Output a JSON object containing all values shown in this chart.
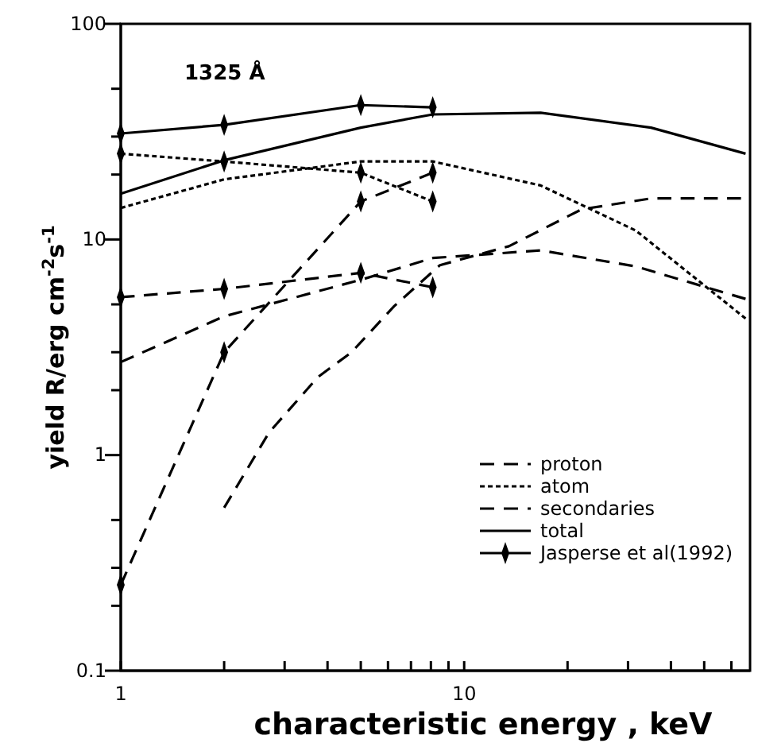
{
  "chart_data": {
    "type": "line",
    "xlabel": "characteristic energy , keV",
    "ylabel": "yield  R/erg cm$^{-2}$s$^{-1}$",
    "annotations": [
      "1325 Å"
    ],
    "log": "xy",
    "grid": false,
    "legend": "right",
    "xlim": [
      1,
      68
    ],
    "ylim": [
      0.1,
      100
    ],
    "xticks": [
      1,
      {
        "value": 2,
        "label": null
      },
      {
        "value": 3,
        "label": null
      },
      {
        "value": 4,
        "label": null
      },
      {
        "value": 5,
        "label": null
      },
      {
        "value": 6,
        "label": null
      },
      {
        "value": 7,
        "label": null
      },
      {
        "value": 8,
        "label": null
      },
      {
        "value": 9,
        "label": null
      },
      10,
      {
        "value": 20,
        "label": null
      },
      {
        "value": 30,
        "label": null
      },
      {
        "value": 40,
        "label": null
      },
      {
        "value": 50,
        "label": null
      },
      {
        "value": 60,
        "label": null
      }
    ],
    "yticks": [
      0.1,
      {
        "value": 0.2,
        "label": null
      },
      {
        "value": 0.3,
        "label": null
      },
      {
        "value": 0.5,
        "label": null
      },
      1,
      {
        "value": 2,
        "label": null
      },
      {
        "value": 3,
        "label": null
      },
      {
        "value": 5,
        "label": null
      },
      10,
      {
        "value": 20,
        "label": null
      },
      {
        "value": 30,
        "label": null
      },
      {
        "value": 50,
        "label": null
      },
      100
    ],
    "series": [
      {
        "name": "proton",
        "color": "#000000",
        "line_style": "dashed",
        "marker": "none",
        "x": [
          1,
          2,
          5,
          8.1,
          16.7,
          31.6,
          66
        ],
        "values": [
          2.7,
          4.4,
          6.5,
          8.2,
          8.9,
          7.5,
          5.3
        ]
      },
      {
        "name": "atom",
        "color": "#000000",
        "line_style": "dotted",
        "marker": "none",
        "x": [
          1,
          2,
          5,
          8.1,
          16.7,
          31.6,
          66
        ],
        "values": [
          14,
          19,
          23,
          23,
          17.8,
          11,
          4.3
        ]
      },
      {
        "name": "secondaries",
        "color": "#000000",
        "line_style": "dashed",
        "marker": "none",
        "x": [
          2,
          2.7,
          3.75,
          4.7,
          6.25,
          8.5,
          13.5,
          22,
          35,
          64
        ],
        "values": [
          0.57,
          1.27,
          2.3,
          3,
          4.9,
          7.6,
          9.3,
          13.8,
          15.5,
          15.5
        ]
      },
      {
        "name": "total",
        "color": "#000000",
        "line_style": "solid",
        "marker": "none",
        "x": [
          1,
          2,
          5,
          8.1,
          16.7,
          35,
          66
        ],
        "values": [
          16.3,
          23.3,
          33,
          38,
          38.7,
          33,
          25
        ]
      },
      {
        "name": "Jasperse et al(1992)",
        "color": "#000000",
        "line_style": "solid",
        "marker": "diamond",
        "x": [
          1,
          2,
          5,
          8.1
        ],
        "values": [
          31,
          34,
          42,
          41
        ]
      },
      {
        "color": "#000000",
        "line_style": "dotted",
        "marker": "diamond",
        "x": [
          1,
          2,
          5,
          8.1
        ],
        "values": [
          25,
          23,
          20.4,
          15
        ]
      },
      {
        "color": "#000000",
        "line_style": "dashed",
        "marker": "diamond",
        "x": [
          1,
          2,
          5,
          8.1
        ],
        "values": [
          0.25,
          3,
          15,
          20.4
        ]
      },
      {
        "color": "#000000",
        "line_style": "dashed",
        "marker": "diamond",
        "x": [
          1,
          2,
          5,
          8.1
        ],
        "values": [
          5.4,
          5.9,
          7,
          6
        ]
      }
    ]
  }
}
